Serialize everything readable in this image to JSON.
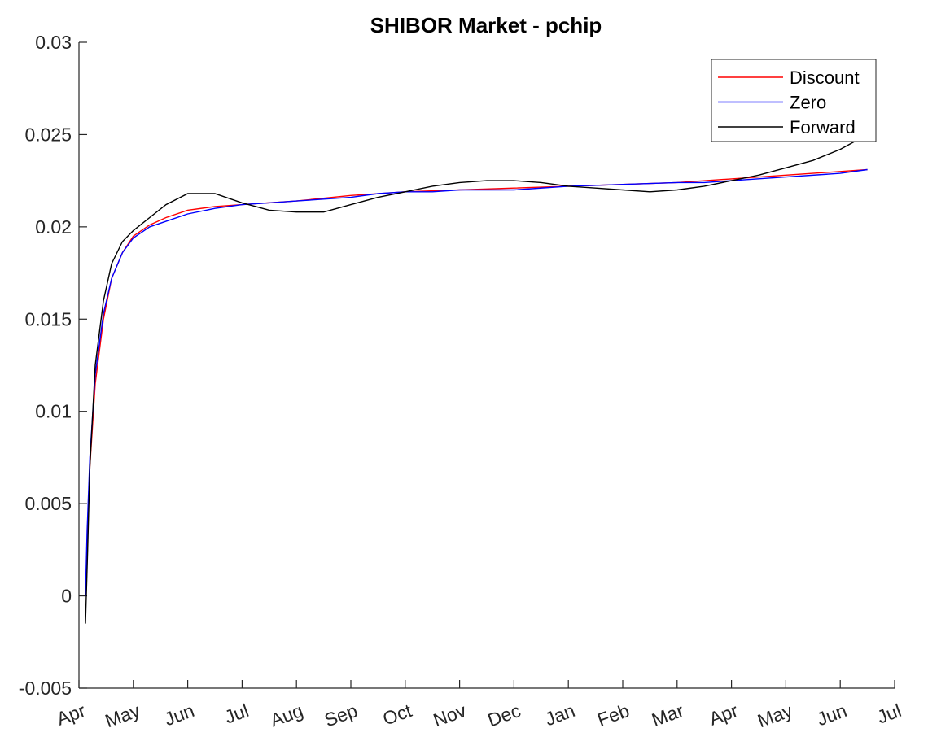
{
  "chart_data": {
    "type": "line",
    "title": "SHIBOR Market - pchip",
    "xlabel": "",
    "ylabel": "",
    "ylim": [
      -0.005,
      0.03
    ],
    "xlim": [
      0,
      15
    ],
    "x_unit": "months",
    "x_ticks": [
      0,
      1,
      2,
      3,
      4,
      5,
      6,
      7,
      8,
      9,
      10,
      11,
      12,
      13,
      14,
      15
    ],
    "x_tick_labels": [
      "Apr",
      "May",
      "Jun",
      "Jul",
      "Aug",
      "Sep",
      "Oct",
      "Nov",
      "Dec",
      "Jan",
      "Feb",
      "Mar",
      "Apr",
      "May",
      "Jun",
      "Jul"
    ],
    "y_ticks": [
      -0.005,
      0,
      0.005,
      0.01,
      0.015,
      0.02,
      0.025,
      0.03
    ],
    "y_tick_labels": [
      "-0.005",
      "0",
      "0.005",
      "0.01",
      "0.015",
      "0.02",
      "0.025",
      "0.03"
    ],
    "grid": false,
    "legend_position": "top-right",
    "series": [
      {
        "name": "Discount",
        "color": "#ff0000",
        "x": [
          0.12,
          0.2,
          0.3,
          0.45,
          0.6,
          0.8,
          1.0,
          1.3,
          1.6,
          2.0,
          2.5,
          3.0,
          4.0,
          5.0,
          6.0,
          7.0,
          8.0,
          9.0,
          10.0,
          11.0,
          12.0,
          13.0,
          14.0,
          14.5
        ],
        "y": [
          0.0,
          0.007,
          0.0115,
          0.015,
          0.0172,
          0.0186,
          0.0195,
          0.0201,
          0.0205,
          0.0209,
          0.0211,
          0.0212,
          0.0214,
          0.0217,
          0.0219,
          0.022,
          0.0221,
          0.0222,
          0.0223,
          0.0224,
          0.0226,
          0.0228,
          0.023,
          0.0231
        ]
      },
      {
        "name": "Zero",
        "color": "#0000ff",
        "x": [
          0.12,
          0.15,
          0.2,
          0.3,
          0.45,
          0.6,
          0.8,
          1.0,
          1.3,
          1.6,
          2.0,
          2.5,
          3.0,
          3.5,
          4.0,
          5.0,
          5.5,
          6.0,
          6.5,
          7.0,
          8.0,
          9.0,
          10.0,
          11.0,
          11.5,
          12.0,
          13.0,
          14.0,
          14.5
        ],
        "y": [
          0.0,
          0.0035,
          0.0075,
          0.012,
          0.0153,
          0.0172,
          0.0186,
          0.0194,
          0.02,
          0.0203,
          0.0207,
          0.021,
          0.0212,
          0.0213,
          0.0214,
          0.0216,
          0.0218,
          0.0219,
          0.0219,
          0.022,
          0.022,
          0.0222,
          0.0223,
          0.0224,
          0.0224,
          0.0225,
          0.0227,
          0.0229,
          0.0231
        ]
      },
      {
        "name": "Forward",
        "color": "#000000",
        "x": [
          0.12,
          0.16,
          0.2,
          0.3,
          0.45,
          0.6,
          0.8,
          1.0,
          1.3,
          1.6,
          2.0,
          2.5,
          3.0,
          3.5,
          4.0,
          4.5,
          5.0,
          5.5,
          6.0,
          6.5,
          7.0,
          7.5,
          8.0,
          8.5,
          9.0,
          9.5,
          10.0,
          10.5,
          11.0,
          11.5,
          12.0,
          12.5,
          13.0,
          13.5,
          14.0,
          14.5
        ],
        "y": [
          -0.0015,
          0.0025,
          0.007,
          0.0125,
          0.016,
          0.018,
          0.0192,
          0.0198,
          0.0205,
          0.0212,
          0.0218,
          0.0218,
          0.0213,
          0.0209,
          0.0208,
          0.0208,
          0.0212,
          0.0216,
          0.0219,
          0.0222,
          0.0224,
          0.0225,
          0.0225,
          0.0224,
          0.0222,
          0.0221,
          0.022,
          0.0219,
          0.022,
          0.0222,
          0.0225,
          0.0228,
          0.0232,
          0.0236,
          0.0242,
          0.025
        ]
      }
    ]
  }
}
